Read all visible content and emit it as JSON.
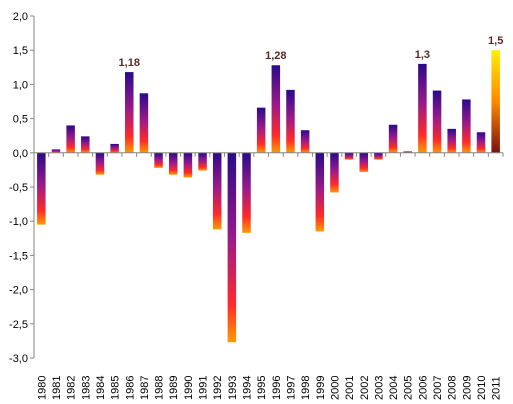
{
  "chart_data": {
    "type": "bar",
    "title": "",
    "xlabel": "",
    "ylabel": "",
    "ylim": [
      -3.0,
      2.0
    ],
    "ytick_step": 0.5,
    "yticks": [
      "2,0",
      "1,5",
      "1,0",
      "0,5",
      "0,0",
      "-0,5",
      "-1,0",
      "-1,5",
      "-2,0",
      "-2,5",
      "-3,0"
    ],
    "grid": false,
    "legend": "none",
    "categories": [
      "1980",
      "1981",
      "1982",
      "1983",
      "1984",
      "1985",
      "1986",
      "1987",
      "1988",
      "1989",
      "1990",
      "1991",
      "1992",
      "1993",
      "1994",
      "1995",
      "1996",
      "1997",
      "1998",
      "1999",
      "2000",
      "2001",
      "2002",
      "2003",
      "2004",
      "2005",
      "2006",
      "2007",
      "2008",
      "2009",
      "2010",
      "2011"
    ],
    "values": [
      -1.05,
      0.05,
      0.4,
      0.24,
      -0.32,
      0.13,
      1.18,
      0.87,
      -0.22,
      -0.32,
      -0.36,
      -0.26,
      -1.12,
      -2.77,
      -1.17,
      0.66,
      1.28,
      0.92,
      0.33,
      -1.15,
      -0.58,
      -0.1,
      -0.28,
      -0.1,
      0.41,
      0.02,
      1.3,
      0.91,
      0.35,
      0.78,
      0.3,
      1.5
    ],
    "annotations": [
      {
        "category": "1986",
        "text": "1,18"
      },
      {
        "category": "1996",
        "text": "1,28"
      },
      {
        "category": "2006",
        "text": "1,3"
      },
      {
        "category": "2011",
        "text": "1,5"
      }
    ],
    "highlight": {
      "category": "2011",
      "colors": [
        "#ffee00",
        "#ff8800",
        "#7a1010"
      ]
    },
    "colors": {
      "bar_top": "#2a0a8a",
      "bar_mid": "#9a1a8a",
      "bar_low": "#ff2a2a",
      "bar_base": "#ff9a00",
      "axis": "#868686"
    }
  }
}
